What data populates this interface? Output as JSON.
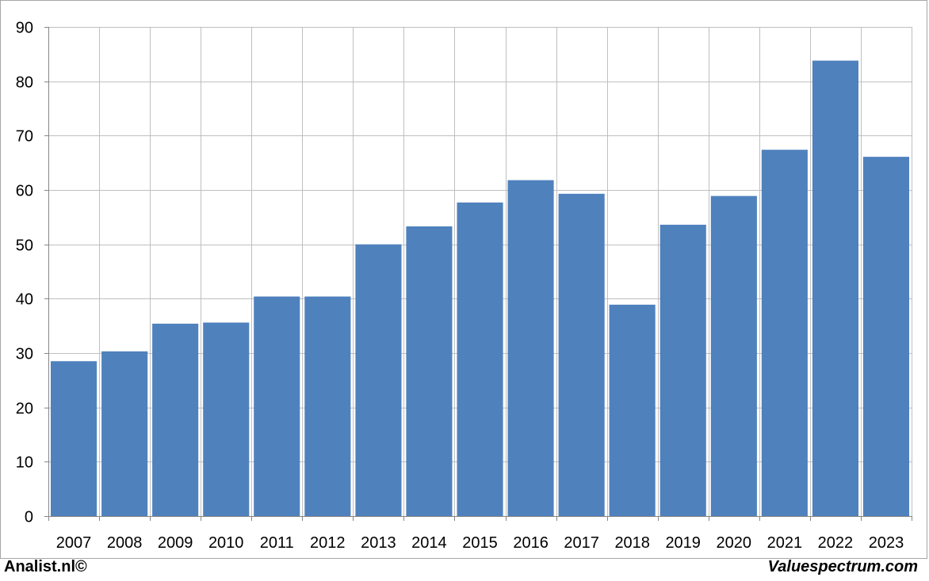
{
  "chart_data": {
    "type": "bar",
    "categories": [
      "2007",
      "2008",
      "2009",
      "2010",
      "2011",
      "2012",
      "2013",
      "2014",
      "2015",
      "2016",
      "2017",
      "2018",
      "2019",
      "2020",
      "2021",
      "2022",
      "2023"
    ],
    "values": [
      28.5,
      30.3,
      35.4,
      35.6,
      40.4,
      40.4,
      50.0,
      53.3,
      57.7,
      61.8,
      59.3,
      38.9,
      53.6,
      58.9,
      67.4,
      83.8,
      66.1
    ],
    "ylim": [
      0,
      90
    ],
    "yticks": [
      0,
      10,
      20,
      30,
      40,
      50,
      60,
      70,
      80,
      90
    ],
    "grid": true,
    "bar_color": "#4f81bd",
    "grid_color": "#bfbfbf",
    "axis_color": "#868686"
  },
  "footer": {
    "left_text": "Analist.nl©",
    "right_text": "Valuespectrum.com"
  }
}
